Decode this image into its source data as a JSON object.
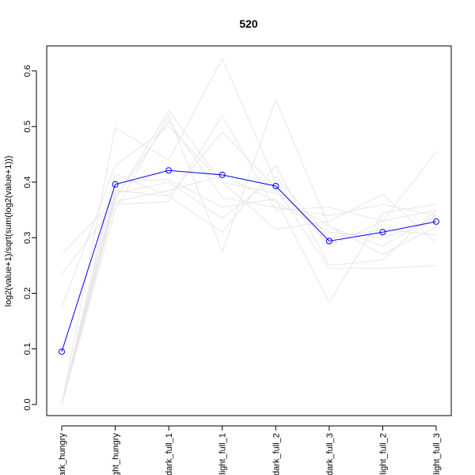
{
  "chart_data": {
    "type": "line",
    "title": "520",
    "xlabel": "",
    "ylabel": "log2(value+1)/sqrt(sum(log2(value+1)))",
    "categories": [
      "dark_hungry",
      "light_hungry",
      "dark_full_1",
      "light_full_1",
      "dark_full_2",
      "dark_full_3",
      "light_full_2",
      "light_full_3"
    ],
    "ylim": [
      -0.02,
      0.645
    ],
    "yticks": [
      0.0,
      0.1,
      0.2,
      0.3,
      0.4,
      0.5,
      0.6
    ],
    "grid": false,
    "highlight": {
      "color": "#0000ff",
      "marker": "open-circle",
      "values": [
        0.095,
        0.396,
        0.421,
        0.413,
        0.393,
        0.294,
        0.31,
        0.329
      ]
    },
    "background_series_color": "#e6e6e6",
    "background_series": [
      [
        0.0,
        0.498,
        0.44,
        0.622,
        0.4,
        0.285,
        0.33,
        0.455
      ],
      [
        0.27,
        0.37,
        0.528,
        0.4,
        0.38,
        0.32,
        0.285,
        0.34
      ],
      [
        0.235,
        0.36,
        0.365,
        0.52,
        0.35,
        0.355,
        0.33,
        0.35
      ],
      [
        0.0,
        0.35,
        0.52,
        0.275,
        0.548,
        0.32,
        0.27,
        0.32
      ],
      [
        0.175,
        0.43,
        0.5,
        0.4,
        0.315,
        0.33,
        0.378,
        0.29
      ],
      [
        0.0,
        0.415,
        0.375,
        0.31,
        0.43,
        0.25,
        0.26,
        0.35
      ],
      [
        0.0,
        0.4,
        0.405,
        0.355,
        0.37,
        0.183,
        0.345,
        0.36
      ],
      [
        0.0,
        0.385,
        0.375,
        0.49,
        0.39,
        0.245,
        0.245,
        0.25
      ],
      [
        0.0,
        0.38,
        0.4,
        0.335,
        0.41,
        0.3,
        0.315,
        0.305
      ],
      [
        0.0,
        0.372,
        0.51,
        0.372,
        0.355,
        0.34,
        0.36,
        0.34
      ],
      [
        0.0,
        0.365,
        0.385,
        0.412,
        0.365,
        0.31,
        0.3,
        0.33
      ]
    ]
  }
}
